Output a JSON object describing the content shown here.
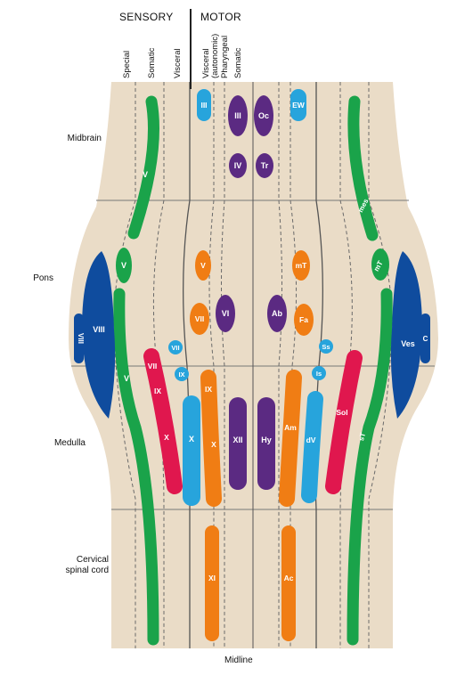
{
  "headers": {
    "sensory": "SENSORY",
    "motor": "MOTOR"
  },
  "columns": {
    "special": "Special",
    "somatic_sensory": "Somatic",
    "visceral_sensory": "Visceral",
    "visceral_autonomic_1": "Visceral",
    "visceral_autonomic_2": "(autonomic)",
    "pharyngeal": "Pharyngeal",
    "somatic_motor": "Somatic"
  },
  "regions": {
    "midbrain": "Midbrain",
    "pons": "Pons",
    "medulla": "Medulla",
    "cervical_1": "Cervical",
    "cervical_2": "spinal cord"
  },
  "midline": "Midline",
  "colors": {
    "background": "#eadcc7",
    "green": "#1aa34a",
    "blue": "#0f4c9e",
    "lightblue": "#27a4dc",
    "red": "#e0174e",
    "orange": "#f07d14",
    "purple": "#5b2a82",
    "line": "#5a5a5a"
  },
  "nuclei": {
    "n1": "V",
    "n2": "V",
    "n3": "V",
    "n4": "VIII",
    "n5": "VIII",
    "n6": "III",
    "n7": "III",
    "n8": "Oc",
    "n9": "IV",
    "n10": "Tr",
    "n11": "EW",
    "n12": "mes",
    "n13": "V",
    "n14": "mT",
    "n15": "mT",
    "n16": "VII",
    "n17": "VI",
    "n18": "Ab",
    "n19": "Fa",
    "n20": "VII",
    "n21": "Ss",
    "n22": "VII",
    "n23": "IX",
    "n24": "X",
    "n25": "IX",
    "n26": "Is",
    "n27": "X",
    "n28": "IX",
    "n29": "X",
    "n30": "XII",
    "n31": "Hy",
    "n32": "Am",
    "n33": "dV",
    "n34": "Sol",
    "n35": "sT",
    "n36": "Ves",
    "n37": "C",
    "n38": "XI",
    "n39": "Ac"
  }
}
